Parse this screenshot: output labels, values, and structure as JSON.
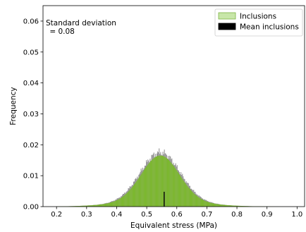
{
  "chart_data": {
    "type": "bar",
    "xlabel": "Equivalent stress (MPa)",
    "ylabel": "Frequency",
    "xlim": [
      0.155,
      1.025
    ],
    "ylim": [
      0,
      0.065
    ],
    "xticks": [
      "0.2",
      "0.3",
      "0.4",
      "0.5",
      "0.6",
      "0.7",
      "0.8",
      "0.9",
      "1.0"
    ],
    "yticks": [
      "0.00",
      "0.01",
      "0.02",
      "0.03",
      "0.04",
      "0.05",
      "0.06"
    ],
    "annotation": {
      "line1": "Standard deviation",
      "line2": " = 0.08"
    },
    "legend": {
      "position": "top-right",
      "entries": [
        {
          "label": "Inclusions",
          "color": "#c8e6a8",
          "edge": "#7cb342"
        },
        {
          "label": "Mean inclusions",
          "color": "#000000",
          "edge": "#000000"
        }
      ]
    },
    "histogram": {
      "x_start": 0.2,
      "x_end": 1.0,
      "bin_width": 0.0025,
      "peak_x": 0.545,
      "std": 0.08,
      "peak_frequency": 0.0145,
      "fill_color": "#7cb82f",
      "spread_color": "#808080",
      "spread_frequency": 0.0155
    },
    "mean_line": {
      "x": 0.558,
      "y": 0.0048,
      "color": "#000000"
    },
    "grid": false
  }
}
